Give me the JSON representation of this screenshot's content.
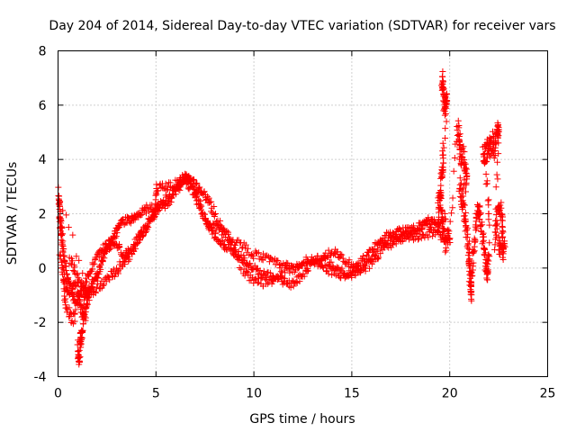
{
  "chart_data": {
    "type": "scatter",
    "title": "Day 204 of 2014, Sidereal Day-to-day VTEC variation (SDTVAR) for receiver vars",
    "xlabel": "GPS time / hours",
    "ylabel": "SDTVAR / TECUs",
    "xlim": [
      0,
      25
    ],
    "ylim": [
      -4,
      8
    ],
    "xticks": [
      0,
      5,
      10,
      15,
      20,
      25
    ],
    "yticks": [
      -4,
      -2,
      0,
      2,
      4,
      6,
      8
    ],
    "grid": true,
    "marker": "+",
    "color": "#ff0000",
    "series": [
      {
        "name": "SDTVAR",
        "tracks": [
          {
            "jitter": 0.15,
            "points": [
              [
                0.0,
                3.1
              ],
              [
                0.1,
                1.6
              ],
              [
                0.2,
                1.0
              ],
              [
                0.35,
                0.3
              ],
              [
                0.5,
                -0.4
              ],
              [
                0.7,
                -0.8
              ],
              [
                0.9,
                -0.5
              ],
              [
                1.1,
                -1.2
              ],
              [
                1.25,
                -1.8
              ],
              [
                1.4,
                -1.0
              ],
              [
                1.6,
                -0.8
              ],
              [
                1.8,
                -0.5
              ],
              [
                2.0,
                -0.3
              ],
              [
                2.2,
                0.1
              ],
              [
                2.4,
                0.6
              ],
              [
                2.6,
                0.8
              ],
              [
                2.8,
                1.0
              ],
              [
                3.0,
                1.4
              ],
              [
                3.2,
                1.6
              ],
              [
                3.5,
                1.8
              ],
              [
                3.8,
                1.8
              ],
              [
                4.0,
                1.9
              ],
              [
                4.3,
                2.1
              ],
              [
                4.6,
                2.2
              ],
              [
                5.0,
                2.2
              ],
              [
                5.3,
                2.3
              ],
              [
                5.6,
                2.4
              ],
              [
                6.0,
                2.8
              ],
              [
                6.3,
                3.1
              ],
              [
                6.6,
                3.4
              ],
              [
                6.9,
                3.1
              ],
              [
                7.1,
                2.6
              ],
              [
                7.4,
                2.0
              ],
              [
                7.7,
                1.6
              ],
              [
                8.0,
                1.2
              ],
              [
                8.3,
                0.9
              ],
              [
                8.6,
                0.8
              ],
              [
                9.0,
                0.6
              ],
              [
                9.3,
                0.5
              ],
              [
                9.6,
                0.2
              ],
              [
                10.0,
                0.0
              ],
              [
                10.4,
                -0.2
              ],
              [
                10.8,
                -0.3
              ],
              [
                11.2,
                -0.4
              ],
              [
                11.6,
                -0.5
              ],
              [
                12.0,
                -0.6
              ],
              [
                12.4,
                -0.3
              ],
              [
                12.8,
                0.0
              ],
              [
                13.2,
                0.2
              ],
              [
                13.6,
                0.4
              ],
              [
                14.0,
                0.6
              ],
              [
                14.4,
                0.5
              ],
              [
                14.8,
                0.2
              ],
              [
                15.2,
                0.1
              ],
              [
                15.6,
                0.3
              ],
              [
                16.0,
                0.6
              ],
              [
                16.4,
                1.0
              ],
              [
                16.8,
                1.2
              ],
              [
                17.2,
                1.3
              ],
              [
                17.6,
                1.4
              ],
              [
                18.0,
                1.4
              ],
              [
                18.4,
                1.5
              ],
              [
                18.8,
                1.7
              ],
              [
                19.2,
                1.8
              ],
              [
                19.5,
                1.6
              ],
              [
                19.8,
                1.9
              ]
            ]
          },
          {
            "jitter": 0.15,
            "points": [
              [
                0.1,
                0.5
              ],
              [
                0.3,
                -0.3
              ],
              [
                0.5,
                -0.9
              ],
              [
                0.8,
                -1.1
              ],
              [
                1.0,
                -1.3
              ],
              [
                1.2,
                -0.8
              ],
              [
                1.5,
                -0.4
              ],
              [
                1.8,
                0.2
              ],
              [
                2.1,
                0.5
              ],
              [
                2.4,
                0.8
              ],
              [
                2.7,
                1.0
              ],
              [
                3.0,
                0.9
              ],
              [
                3.3,
                0.5
              ],
              [
                3.6,
                0.6
              ],
              [
                4.0,
                1.0
              ],
              [
                4.4,
                1.4
              ],
              [
                4.8,
                1.9
              ],
              [
                5.2,
                2.3
              ],
              [
                5.6,
                2.6
              ],
              [
                6.0,
                2.9
              ],
              [
                6.4,
                3.2
              ],
              [
                6.8,
                3.0
              ],
              [
                7.2,
                2.3
              ],
              [
                7.6,
                1.7
              ],
              [
                8.0,
                1.5
              ],
              [
                8.5,
                1.3
              ],
              [
                9.0,
                1.0
              ],
              [
                9.5,
                0.8
              ],
              [
                10.0,
                0.5
              ],
              [
                10.5,
                0.4
              ],
              [
                11.0,
                0.2
              ],
              [
                11.5,
                0.1
              ],
              [
                12.0,
                0.0
              ],
              [
                12.5,
                0.1
              ],
              [
                13.0,
                0.3
              ],
              [
                13.5,
                0.3
              ],
              [
                14.0,
                0.1
              ],
              [
                14.5,
                -0.1
              ],
              [
                15.0,
                -0.3
              ],
              [
                15.5,
                -0.1
              ],
              [
                16.0,
                0.2
              ],
              [
                16.5,
                0.6
              ],
              [
                17.0,
                0.9
              ],
              [
                17.5,
                1.1
              ],
              [
                18.0,
                1.2
              ],
              [
                18.5,
                1.1
              ],
              [
                19.0,
                1.3
              ],
              [
                19.5,
                1.2
              ],
              [
                19.8,
                1.0
              ]
            ]
          },
          {
            "jitter": 0.18,
            "points": [
              [
                0.6,
                0.4
              ],
              [
                0.9,
                -0.2
              ],
              [
                1.2,
                -0.6
              ],
              [
                1.5,
                -0.9
              ],
              [
                1.9,
                -0.8
              ],
              [
                2.3,
                -0.6
              ],
              [
                2.7,
                -0.3
              ],
              [
                3.0,
                -0.1
              ],
              [
                3.3,
                0.2
              ],
              [
                3.6,
                0.4
              ],
              [
                3.9,
                0.8
              ],
              [
                4.2,
                1.2
              ],
              [
                4.5,
                1.5
              ],
              [
                4.8,
                1.9
              ],
              [
                5.0,
                2.1
              ],
              [
                5.0,
                3.0
              ],
              [
                5.4,
                3.0
              ],
              [
                5.8,
                3.0
              ],
              [
                6.2,
                3.2
              ],
              [
                6.5,
                3.3
              ],
              [
                6.8,
                3.2
              ],
              [
                7.1,
                3.0
              ],
              [
                7.4,
                2.8
              ],
              [
                7.7,
                2.4
              ],
              [
                8.0,
                2.0
              ],
              [
                8.4,
                1.4
              ],
              [
                8.8,
                0.9
              ],
              [
                9.2,
                0.3
              ],
              [
                9.6,
                -0.2
              ],
              [
                10.0,
                -0.4
              ],
              [
                10.5,
                -0.5
              ],
              [
                11.0,
                -0.4
              ],
              [
                11.5,
                -0.2
              ],
              [
                12.0,
                0.0
              ],
              [
                12.5,
                0.2
              ],
              [
                13.0,
                0.3
              ],
              [
                13.5,
                0.1
              ],
              [
                14.0,
                -0.1
              ],
              [
                14.5,
                -0.3
              ],
              [
                15.0,
                -0.2
              ],
              [
                15.5,
                0.0
              ],
              [
                16.0,
                0.4
              ],
              [
                16.5,
                0.8
              ],
              [
                17.0,
                1.0
              ],
              [
                17.5,
                1.1
              ],
              [
                18.0,
                1.3
              ],
              [
                18.5,
                1.6
              ],
              [
                19.0,
                1.6
              ],
              [
                19.5,
                1.5
              ]
            ]
          },
          {
            "jitter": 0.25,
            "points": [
              [
                1.0,
                -2.8
              ],
              [
                1.05,
                -3.5
              ],
              [
                1.1,
                -3.2
              ],
              [
                1.15,
                -2.6
              ],
              [
                1.2,
                -2.5
              ],
              [
                1.3,
                -2.0
              ],
              [
                1.4,
                -1.6
              ],
              [
                1.5,
                -1.2
              ],
              [
                1.6,
                -0.9
              ],
              [
                0.05,
                2.6
              ],
              [
                0.1,
                2.0
              ],
              [
                0.2,
                1.3
              ],
              [
                0.3,
                -0.6
              ],
              [
                0.4,
                -1.4
              ],
              [
                0.7,
                -1.9
              ],
              [
                0.9,
                -1.7
              ]
            ]
          },
          {
            "jitter": 0.35,
            "points": [
              [
                19.6,
                6.8
              ],
              [
                19.65,
                7.1
              ],
              [
                19.7,
                6.2
              ],
              [
                19.75,
                5.9
              ],
              [
                19.8,
                6.3
              ],
              [
                19.85,
                6.0
              ],
              [
                19.6,
                3.6
              ],
              [
                19.7,
                3.9
              ],
              [
                19.5,
                3.0
              ],
              [
                19.55,
                2.6
              ],
              [
                19.4,
                2.3
              ],
              [
                19.6,
                2.0
              ],
              [
                19.7,
                1.2
              ],
              [
                19.8,
                0.8
              ],
              [
                19.9,
                1.3
              ],
              [
                20.0,
                1.0
              ],
              [
                20.4,
                5.2
              ],
              [
                20.5,
                4.9
              ],
              [
                20.5,
                4.3
              ],
              [
                20.6,
                4.0
              ],
              [
                20.7,
                4.2
              ],
              [
                20.8,
                3.6
              ],
              [
                20.9,
                3.2
              ],
              [
                20.5,
                3.0
              ],
              [
                20.6,
                2.6
              ],
              [
                20.7,
                2.2
              ],
              [
                20.8,
                1.8
              ],
              [
                20.9,
                1.2
              ],
              [
                21.0,
                0.6
              ],
              [
                21.0,
                0.0
              ],
              [
                21.05,
                -0.5
              ],
              [
                21.1,
                -1.0
              ],
              [
                21.1,
                -0.4
              ],
              [
                21.2,
                0.6
              ],
              [
                21.3,
                1.4
              ],
              [
                21.4,
                2.0
              ],
              [
                21.5,
                2.2
              ],
              [
                21.6,
                1.6
              ],
              [
                21.7,
                1.0
              ],
              [
                21.8,
                0.4
              ],
              [
                21.9,
                0.0
              ],
              [
                21.9,
                -0.2
              ],
              [
                22.0,
                0.3
              ],
              [
                22.0,
                2.6
              ],
              [
                21.7,
                4.3
              ],
              [
                21.8,
                4.2
              ],
              [
                21.9,
                4.3
              ],
              [
                22.0,
                4.5
              ],
              [
                22.1,
                4.4
              ],
              [
                22.2,
                4.7
              ],
              [
                22.3,
                4.4
              ],
              [
                22.4,
                4.8
              ],
              [
                22.45,
                5.2
              ],
              [
                22.5,
                4.9
              ],
              [
                22.3,
                1.0
              ],
              [
                22.4,
                1.6
              ],
              [
                22.5,
                2.3
              ],
              [
                22.6,
                2.1
              ],
              [
                22.7,
                1.5
              ],
              [
                22.7,
                0.6
              ],
              [
                22.8,
                0.8
              ],
              [
                22.6,
                0.5
              ],
              [
                22.5,
                1.0
              ]
            ]
          }
        ]
      }
    ]
  }
}
